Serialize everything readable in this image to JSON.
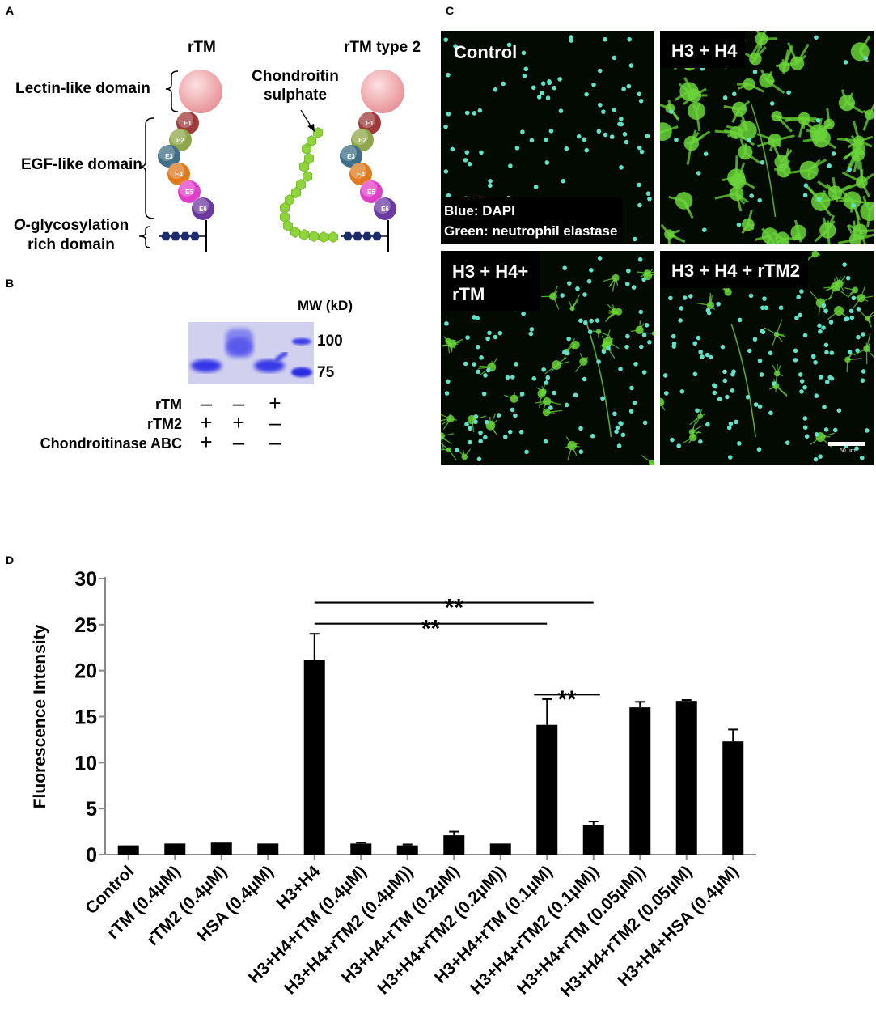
{
  "panel_labels": {
    "a": "A",
    "b": "B",
    "c": "C",
    "d": "D"
  },
  "panel_a": {
    "rtm_title": "rTM",
    "rtm2_title": "rTM type 2",
    "chondroitin_label": "Chondroitin\nsulphate",
    "domains": {
      "lectin": "Lectin-like domain",
      "egf": "EGF-like domain",
      "oglyco_italic": "O",
      "oglyco_rest": "-glycosylation",
      "oglyco_line2": "rich domain"
    },
    "egf_units": [
      {
        "label": "E1",
        "color": "#9e3a3a"
      },
      {
        "label": "E2",
        "color": "#8fa64a"
      },
      {
        "label": "E3",
        "color": "#3f6e86"
      },
      {
        "label": "E4",
        "color": "#e07a1f"
      },
      {
        "label": "E5",
        "color": "#e040c8"
      },
      {
        "label": "E6",
        "color": "#6a3aa0"
      }
    ],
    "lectin_color": "#f0a8a8",
    "chondroitin_color": "#8fd43a",
    "oglyco_color": "#1c2b6e"
  },
  "panel_b": {
    "mw_title": "MW (kD)",
    "mw_markers": [
      "100",
      "75"
    ],
    "rows": [
      {
        "label": "rTM",
        "signs": [
          "–",
          "–",
          "+"
        ]
      },
      {
        "label": "rTM2",
        "signs": [
          "+",
          "+",
          "–"
        ]
      },
      {
        "label": "Chondroitinase ABC",
        "signs": [
          "+",
          "–",
          "–"
        ]
      }
    ],
    "gel_color": "#3a3af0"
  },
  "panel_c": {
    "panels": [
      {
        "title": "Control"
      },
      {
        "title": "H3 + H4"
      },
      {
        "title": "H3 + H4+\nrTM"
      },
      {
        "title": "H3 + H4 + rTM2"
      }
    ],
    "legend_blue": "Blue: DAPI",
    "legend_green": "Green: neutrophil elastase",
    "scale_bar": "50 μm",
    "cell_color": "#62e0c8",
    "net_color": "#6ad33a"
  },
  "chart_data": {
    "type": "bar",
    "ylabel": "Fluorescence Intensity",
    "xlabel": "",
    "ylim": [
      0,
      30
    ],
    "yticks": [
      0,
      5,
      10,
      15,
      20,
      25,
      30
    ],
    "categories": [
      "Control",
      "rTM (0.4μM)",
      "rTM2 (0.4μM)",
      "HSA (0.4μM)",
      "H3+H4",
      "H3+H4+rTM (0.4μM)",
      "H3+H4+rTM2 (0.4μM))",
      "H3+H4+rTM (0.2μM)",
      "H3+H4+rTM2 (0.2μM))",
      "H3+H4+rTM (0.1μM)",
      "H3+H4+rTM2 (0.1μM))",
      "H3+H4+rTM (0.05μM))",
      "H3+H4+rTM2 (0.05μM)",
      "H3+H4+HSA (0.4μM)"
    ],
    "values": [
      1.0,
      1.2,
      1.3,
      1.2,
      21.2,
      1.2,
      1.0,
      2.1,
      1.2,
      14.1,
      3.2,
      16.0,
      16.7,
      12.3
    ],
    "errors": [
      0.0,
      0.0,
      0.0,
      0.0,
      2.8,
      0.1,
      0.1,
      0.4,
      0.0,
      2.8,
      0.4,
      0.6,
      0.1,
      1.3
    ],
    "significance": [
      {
        "from": "H3+H4",
        "to": "H3+H4+rTM2 (0.1μM))",
        "label": "**"
      },
      {
        "from": "H3+H4",
        "to": "H3+H4+rTM (0.1μM)",
        "label": "**"
      },
      {
        "from": "H3+H4+rTM (0.1μM)",
        "to": "H3+H4+rTM2 (0.1μM))",
        "label": "**"
      }
    ],
    "bar_color": "#000000",
    "grid": false
  }
}
